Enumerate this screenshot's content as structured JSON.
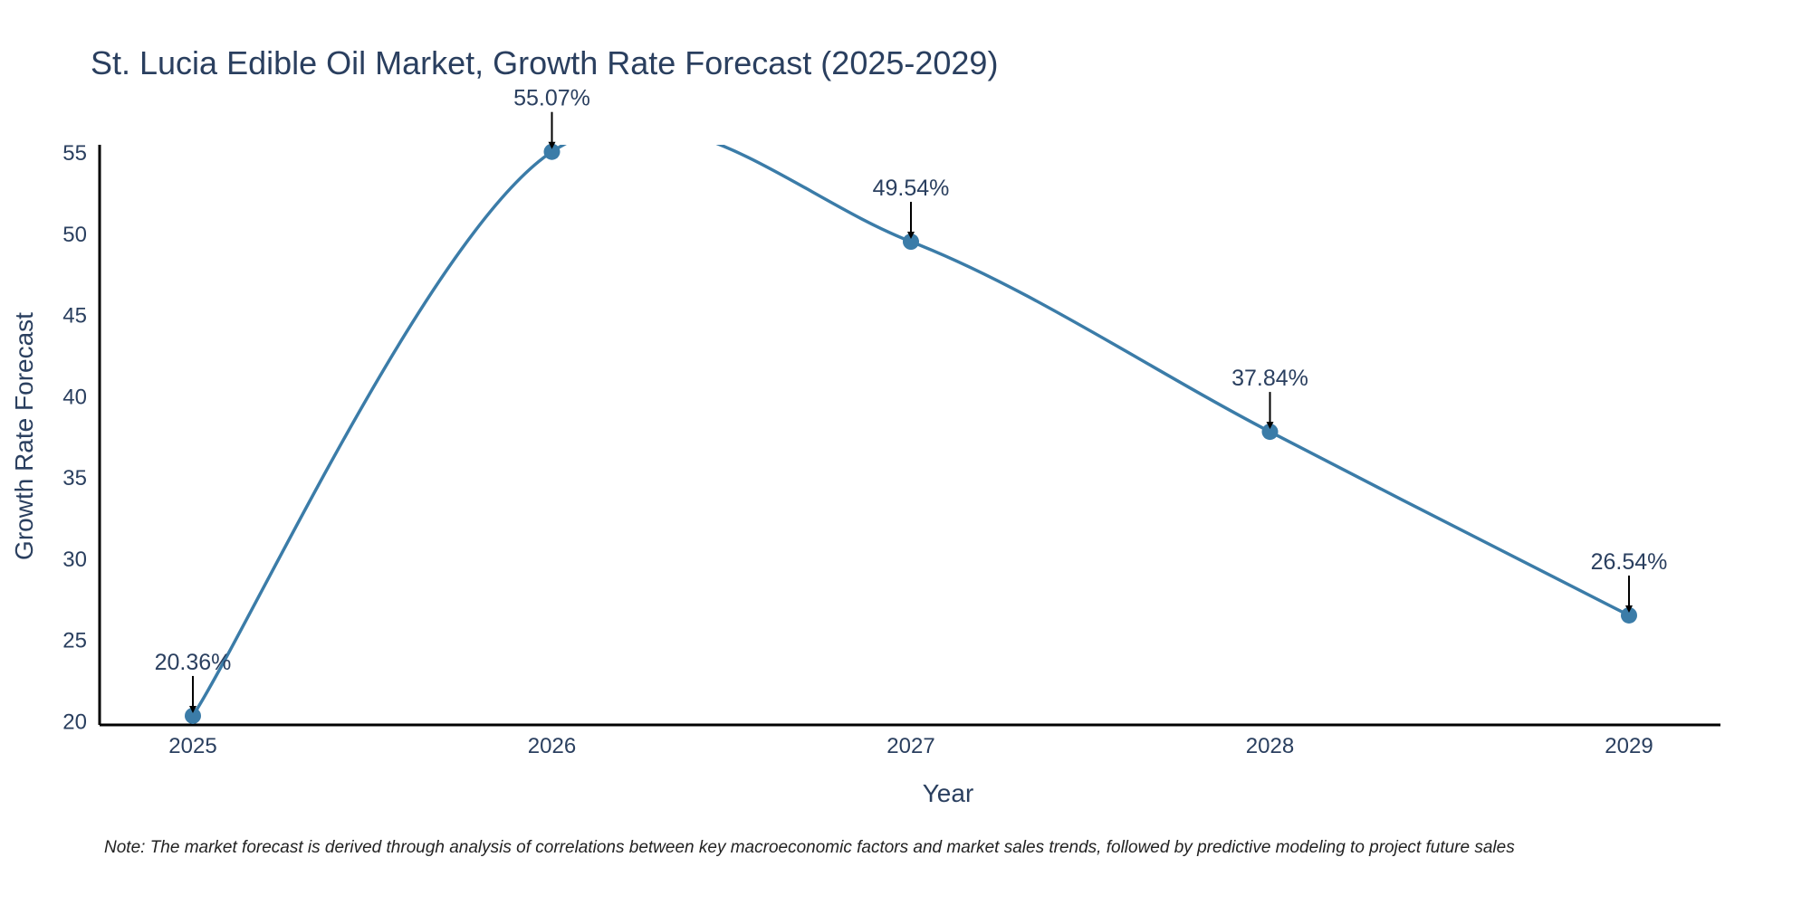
{
  "chart_data": {
    "type": "line",
    "title": "St. Lucia Edible Oil Market, Growth Rate Forecast (2025-2029)",
    "xlabel": "Year",
    "ylabel": "Growth Rate Forecast",
    "categories": [
      "2025",
      "2026",
      "2027",
      "2028",
      "2029"
    ],
    "series": [
      {
        "name": "Growth Rate Forecast",
        "values": [
          20.36,
          55.07,
          49.54,
          37.84,
          26.54
        ]
      }
    ],
    "data_labels": [
      "20.36%",
      "55.07%",
      "49.54%",
      "37.84%",
      "26.54%"
    ],
    "y_ticks": [
      20,
      25,
      30,
      35,
      40,
      45,
      50,
      55
    ],
    "ylim": [
      19.8,
      55.5
    ],
    "grid": false,
    "line_shape": "spline",
    "line_color": "#3b7ca8",
    "marker_color": "#3b7ca8",
    "note": "Note: The market forecast is derived through analysis of correlations between key macroeconomic factors and market sales trends, followed by predictive modeling to project future sales"
  }
}
